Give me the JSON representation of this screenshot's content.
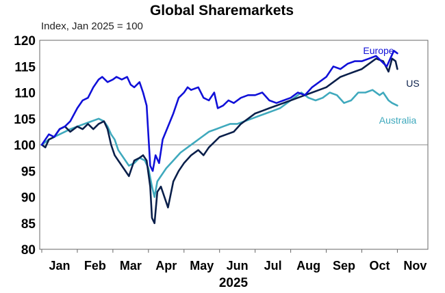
{
  "chart_data": {
    "type": "line",
    "title": "Global Sharemarkets",
    "subtitle": "Index, Jan 2025 = 100",
    "xlabel": "2025",
    "ylabel": "",
    "ylim": [
      80,
      120
    ],
    "yticks": [
      80,
      85,
      90,
      95,
      100,
      105,
      110,
      115,
      120
    ],
    "reference_line": 100,
    "months": [
      "Jan",
      "Feb",
      "Mar",
      "Apr",
      "May",
      "Jun",
      "Jul",
      "Aug",
      "Sep",
      "Oct",
      "Nov"
    ],
    "x_unit": "months since start of Jan 2025",
    "series": [
      {
        "name": "Europe",
        "color": "#1010d8",
        "points": [
          [
            0,
            100
          ],
          [
            0.1,
            101
          ],
          [
            0.2,
            102
          ],
          [
            0.35,
            101.5
          ],
          [
            0.5,
            103
          ],
          [
            0.65,
            103.5
          ],
          [
            0.8,
            104.5
          ],
          [
            1.0,
            107
          ],
          [
            1.15,
            108.5
          ],
          [
            1.3,
            109
          ],
          [
            1.45,
            111
          ],
          [
            1.6,
            112.5
          ],
          [
            1.7,
            113
          ],
          [
            1.85,
            112
          ],
          [
            2.0,
            112.5
          ],
          [
            2.1,
            113
          ],
          [
            2.25,
            112.5
          ],
          [
            2.4,
            113
          ],
          [
            2.5,
            111.5
          ],
          [
            2.6,
            111
          ],
          [
            2.75,
            112
          ],
          [
            2.85,
            110
          ],
          [
            2.95,
            107.5
          ],
          [
            3.05,
            96
          ],
          [
            3.12,
            95
          ],
          [
            3.2,
            98
          ],
          [
            3.3,
            96.5
          ],
          [
            3.4,
            101
          ],
          [
            3.55,
            103.5
          ],
          [
            3.7,
            106
          ],
          [
            3.85,
            109
          ],
          [
            4.0,
            110
          ],
          [
            4.1,
            111
          ],
          [
            4.2,
            110.5
          ],
          [
            4.4,
            111
          ],
          [
            4.55,
            109
          ],
          [
            4.7,
            108.5
          ],
          [
            4.85,
            110
          ],
          [
            4.95,
            107
          ],
          [
            5.1,
            107.5
          ],
          [
            5.25,
            108.5
          ],
          [
            5.4,
            108
          ],
          [
            5.6,
            109
          ],
          [
            5.8,
            109.5
          ],
          [
            6.0,
            109.5
          ],
          [
            6.2,
            110
          ],
          [
            6.4,
            108.5
          ],
          [
            6.6,
            108
          ],
          [
            6.8,
            108.5
          ],
          [
            7.0,
            109
          ],
          [
            7.2,
            110
          ],
          [
            7.4,
            109.5
          ],
          [
            7.6,
            111
          ],
          [
            7.8,
            112
          ],
          [
            8.0,
            113
          ],
          [
            8.2,
            115
          ],
          [
            8.4,
            114.5
          ],
          [
            8.6,
            115.5
          ],
          [
            8.8,
            116
          ],
          [
            9.0,
            116
          ],
          [
            9.2,
            116.5
          ],
          [
            9.4,
            117
          ],
          [
            9.55,
            116
          ],
          [
            9.7,
            115
          ],
          [
            9.8,
            116.5
          ],
          [
            9.9,
            118
          ],
          [
            10.0,
            117.5
          ]
        ]
      },
      {
        "name": "US",
        "color": "#0a1f4a",
        "points": [
          [
            0,
            100
          ],
          [
            0.1,
            99.5
          ],
          [
            0.2,
            101
          ],
          [
            0.35,
            101.5
          ],
          [
            0.5,
            103
          ],
          [
            0.65,
            103.5
          ],
          [
            0.8,
            102.5
          ],
          [
            1.0,
            103.5
          ],
          [
            1.15,
            103
          ],
          [
            1.3,
            104
          ],
          [
            1.45,
            103
          ],
          [
            1.6,
            104
          ],
          [
            1.75,
            104.5
          ],
          [
            1.85,
            103
          ],
          [
            1.95,
            100
          ],
          [
            2.05,
            98
          ],
          [
            2.15,
            97
          ],
          [
            2.3,
            95.5
          ],
          [
            2.45,
            94
          ],
          [
            2.6,
            97
          ],
          [
            2.75,
            97.5
          ],
          [
            2.85,
            98
          ],
          [
            2.95,
            97
          ],
          [
            3.05,
            92
          ],
          [
            3.1,
            86
          ],
          [
            3.17,
            85
          ],
          [
            3.25,
            91
          ],
          [
            3.35,
            92
          ],
          [
            3.45,
            90
          ],
          [
            3.55,
            88
          ],
          [
            3.7,
            93
          ],
          [
            3.85,
            95
          ],
          [
            4.0,
            96.5
          ],
          [
            4.2,
            98
          ],
          [
            4.4,
            99
          ],
          [
            4.55,
            98
          ],
          [
            4.7,
            99.5
          ],
          [
            4.85,
            100.5
          ],
          [
            5.0,
            101.5
          ],
          [
            5.2,
            102
          ],
          [
            5.4,
            102.5
          ],
          [
            5.6,
            104
          ],
          [
            5.8,
            105
          ],
          [
            6.0,
            106
          ],
          [
            6.2,
            106.5
          ],
          [
            6.4,
            107
          ],
          [
            6.6,
            107.5
          ],
          [
            6.8,
            108
          ],
          [
            7.0,
            108.5
          ],
          [
            7.2,
            109
          ],
          [
            7.4,
            109.5
          ],
          [
            7.6,
            110
          ],
          [
            7.8,
            110.5
          ],
          [
            8.0,
            111
          ],
          [
            8.2,
            112
          ],
          [
            8.4,
            113
          ],
          [
            8.6,
            113.5
          ],
          [
            8.8,
            114
          ],
          [
            9.0,
            114.5
          ],
          [
            9.2,
            115.5
          ],
          [
            9.4,
            116.5
          ],
          [
            9.6,
            116
          ],
          [
            9.75,
            114
          ],
          [
            9.85,
            116.5
          ],
          [
            9.95,
            116
          ],
          [
            10.0,
            114.5
          ]
        ]
      },
      {
        "name": "Australia",
        "color": "#3fa9bd",
        "points": [
          [
            0,
            100
          ],
          [
            0.1,
            100.5
          ],
          [
            0.2,
            101
          ],
          [
            0.35,
            101.5
          ],
          [
            0.5,
            102
          ],
          [
            0.65,
            102.5
          ],
          [
            0.8,
            103
          ],
          [
            1.0,
            103.5
          ],
          [
            1.2,
            104
          ],
          [
            1.4,
            104.5
          ],
          [
            1.6,
            105
          ],
          [
            1.75,
            104.5
          ],
          [
            1.85,
            103.5
          ],
          [
            1.95,
            102
          ],
          [
            2.05,
            101
          ],
          [
            2.15,
            99
          ],
          [
            2.3,
            97.5
          ],
          [
            2.45,
            96
          ],
          [
            2.6,
            96.5
          ],
          [
            2.75,
            97.5
          ],
          [
            2.9,
            97
          ],
          [
            3.0,
            95.5
          ],
          [
            3.1,
            92
          ],
          [
            3.17,
            90
          ],
          [
            3.25,
            93
          ],
          [
            3.35,
            94
          ],
          [
            3.5,
            95.5
          ],
          [
            3.7,
            97
          ],
          [
            3.9,
            98.5
          ],
          [
            4.1,
            99.5
          ],
          [
            4.3,
            100.5
          ],
          [
            4.5,
            101.5
          ],
          [
            4.7,
            102.5
          ],
          [
            4.9,
            103
          ],
          [
            5.1,
            103.5
          ],
          [
            5.3,
            104
          ],
          [
            5.5,
            104
          ],
          [
            5.7,
            104.5
          ],
          [
            5.9,
            105
          ],
          [
            6.1,
            105.5
          ],
          [
            6.3,
            106
          ],
          [
            6.5,
            106.5
          ],
          [
            6.7,
            107
          ],
          [
            6.9,
            108
          ],
          [
            7.1,
            109
          ],
          [
            7.3,
            110
          ],
          [
            7.5,
            109
          ],
          [
            7.7,
            108.5
          ],
          [
            7.9,
            109
          ],
          [
            8.1,
            110
          ],
          [
            8.3,
            109.5
          ],
          [
            8.5,
            108
          ],
          [
            8.7,
            108.5
          ],
          [
            8.9,
            110
          ],
          [
            9.1,
            110
          ],
          [
            9.3,
            110.5
          ],
          [
            9.5,
            109.5
          ],
          [
            9.6,
            110
          ],
          [
            9.75,
            108.5
          ],
          [
            9.85,
            108
          ],
          [
            10.0,
            107.5
          ]
        ]
      }
    ],
    "series_labels": [
      {
        "series": "Europe",
        "text": "Europe"
      },
      {
        "series": "US",
        "text": "US"
      },
      {
        "series": "Australia",
        "text": "Australia"
      }
    ]
  }
}
